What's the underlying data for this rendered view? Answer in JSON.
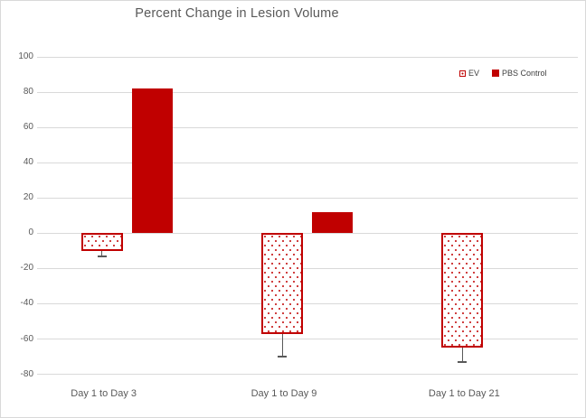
{
  "chart_data": {
    "type": "bar",
    "title": "Percent Change in Lesion Volume",
    "categories": [
      "Day 1 to Day 3",
      "Day 1 to Day 9",
      "Day 1 to Day 21"
    ],
    "series": [
      {
        "name": "EV",
        "fill": "dot-pattern",
        "color": "#C00000",
        "values": [
          -10,
          -57,
          -65
        ],
        "error_whisker_to": [
          -13,
          -70,
          -73
        ]
      },
      {
        "name": "PBS Control",
        "fill": "solid",
        "color": "#C00000",
        "values": [
          82,
          12,
          null
        ],
        "error_whisker_to": [
          null,
          null,
          null
        ]
      }
    ],
    "ylim": [
      -80,
      100
    ],
    "ytick_step": 20,
    "yticks": [
      100,
      80,
      60,
      40,
      20,
      0,
      -20,
      -40,
      -60,
      -80
    ],
    "grid": true,
    "legend_position": "top-right",
    "colors": {
      "bar_red": "#C00000",
      "gridline": "#D9D9D9",
      "axis_text": "#595959",
      "error_bar": "#595959",
      "title_text": "#595959"
    }
  }
}
